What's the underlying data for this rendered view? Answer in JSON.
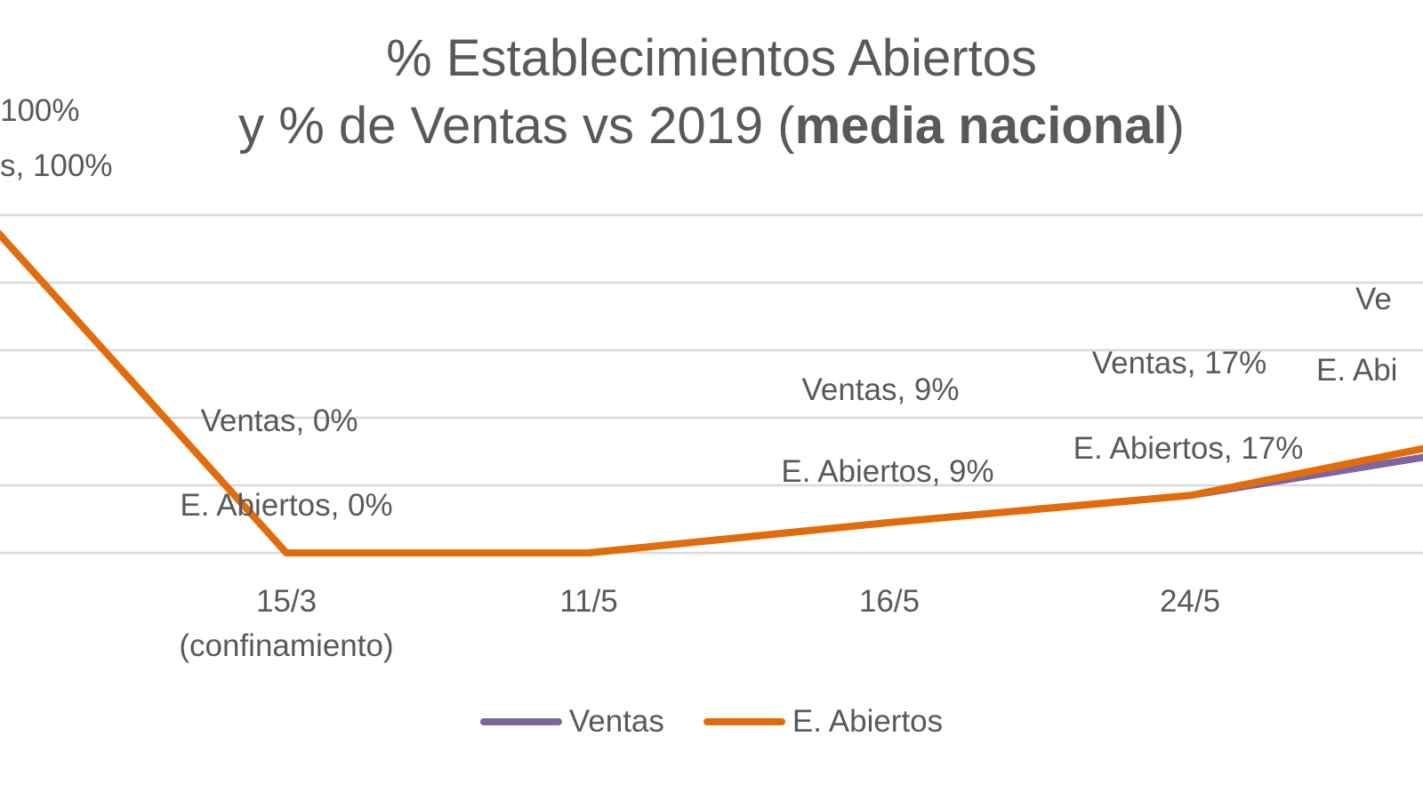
{
  "title": {
    "line1": "% Establecimientos  Abiertos",
    "line2_prefix": "y % de Ventas vs 2019 (",
    "line2_bold": "media nacional",
    "line2_suffix": ")"
  },
  "colors": {
    "ventas": "#8064A2",
    "abiertos": "#E36C0A",
    "grid": "#D9D9D9",
    "text": "#595959"
  },
  "chart_data": {
    "type": "line",
    "title": "% Establecimientos Abiertos y % de Ventas vs 2019 (media nacional)",
    "categories": [
      "",
      "15/3\n(confinamiento)",
      "11/5",
      "16/5",
      "24/5",
      ""
    ],
    "ylim": [
      0,
      100
    ],
    "grid": true,
    "legend_position": "bottom",
    "series": [
      {
        "name": "Ventas",
        "values": [
          100,
          0,
          0,
          9,
          17,
          30
        ],
        "labels": [
          "s, 100%",
          "Ventas, 0%",
          "",
          "Ventas, 9%",
          "Ventas, 17%",
          "Ve"
        ]
      },
      {
        "name": "E. Abiertos",
        "values": [
          100,
          0,
          0,
          9,
          17,
          33
        ],
        "labels": [
          "100%",
          "E. Abiertos, 0%",
          "",
          "E. Abiertos, 9%",
          "E. Abiertos, 17%",
          "E. Abi"
        ]
      }
    ]
  },
  "legend": {
    "ventas": "Ventas",
    "abiertos": "E. Abiertos"
  }
}
